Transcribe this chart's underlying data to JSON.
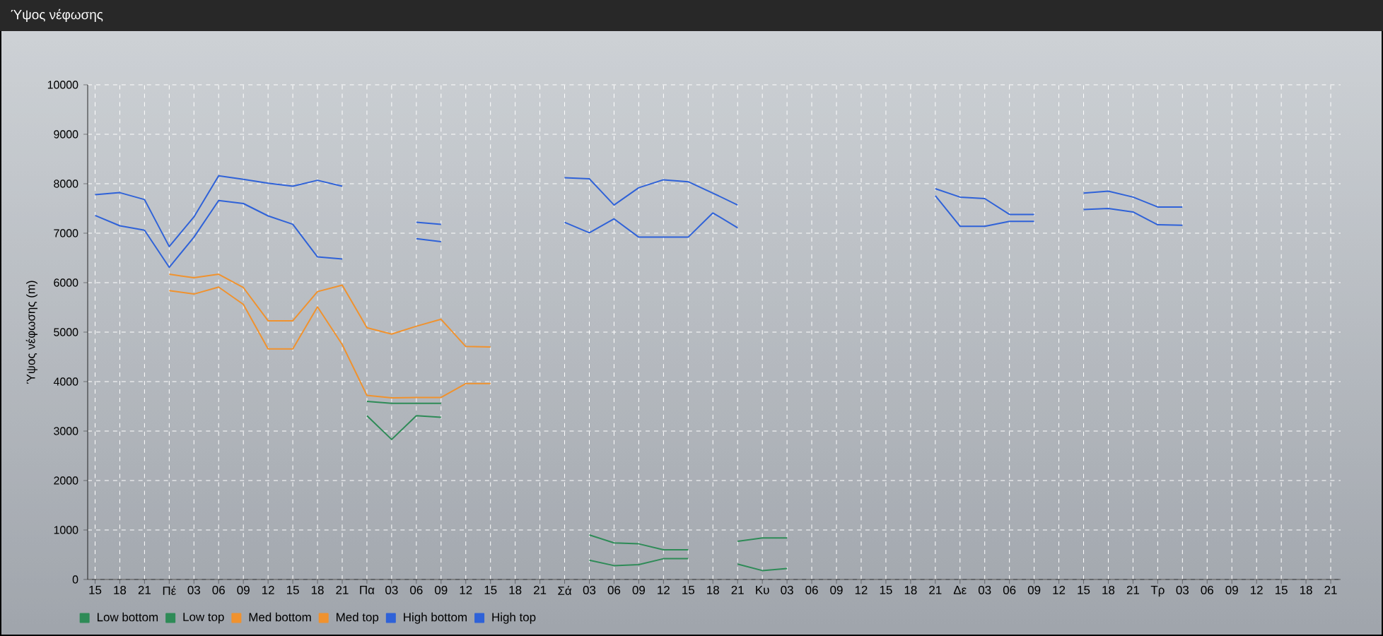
{
  "chart_data": {
    "type": "line",
    "title": "Ύψος νέφωσης",
    "ylabel": "Ύψος νέφωσης (m)",
    "categories": [
      "15",
      "18",
      "21",
      "Πέ",
      "03",
      "06",
      "09",
      "12",
      "15",
      "18",
      "21",
      "Πα",
      "03",
      "06",
      "09",
      "12",
      "15",
      "18",
      "21",
      "Σά",
      "03",
      "06",
      "09",
      "12",
      "15",
      "18",
      "21",
      "Κυ",
      "03",
      "06",
      "09",
      "12",
      "15",
      "18",
      "21",
      "Δε",
      "03",
      "06",
      "09",
      "12",
      "15",
      "18",
      "21",
      "Τρ",
      "03",
      "06",
      "09",
      "12",
      "15",
      "18",
      "21"
    ],
    "series": [
      {
        "name": "Low bottom",
        "color": "#2e8b57",
        "values": [
          null,
          null,
          null,
          null,
          null,
          null,
          null,
          null,
          null,
          null,
          null,
          3310,
          2830,
          3310,
          3280,
          null,
          null,
          null,
          null,
          null,
          390,
          280,
          300,
          420,
          420,
          null,
          310,
          180,
          220,
          null,
          null,
          null,
          null,
          null,
          null,
          null,
          null,
          null,
          null,
          null,
          null,
          null,
          null,
          null,
          null,
          null,
          null,
          null,
          null,
          null,
          null
        ]
      },
      {
        "name": "Low top",
        "color": "#2e8b57",
        "values": [
          null,
          null,
          null,
          null,
          null,
          null,
          null,
          null,
          null,
          null,
          null,
          3600,
          3560,
          3560,
          3560,
          null,
          null,
          null,
          null,
          null,
          900,
          740,
          720,
          600,
          600,
          null,
          770,
          840,
          840,
          null,
          null,
          null,
          null,
          null,
          null,
          null,
          null,
          null,
          null,
          null,
          null,
          null,
          null,
          null,
          null,
          null,
          null,
          null,
          null,
          null,
          null
        ]
      },
      {
        "name": "Med bottom",
        "color": "#f0922e",
        "values": [
          null,
          null,
          null,
          5840,
          5770,
          5910,
          5560,
          4660,
          4660,
          5510,
          4750,
          3720,
          3670,
          3680,
          3680,
          3960,
          3960,
          null,
          null,
          null,
          null,
          null,
          null,
          null,
          null,
          null,
          null,
          null,
          null,
          null,
          null,
          null,
          null,
          null,
          null,
          null,
          null,
          null,
          null,
          null,
          null,
          null,
          null,
          null,
          null,
          null,
          null,
          null,
          null,
          null,
          null
        ]
      },
      {
        "name": "Med top",
        "color": "#f0922e",
        "values": [
          null,
          null,
          null,
          6170,
          6100,
          6170,
          5900,
          5230,
          5230,
          5820,
          5950,
          5090,
          4960,
          5120,
          5260,
          4710,
          4700,
          null,
          null,
          null,
          null,
          null,
          null,
          null,
          null,
          null,
          null,
          null,
          null,
          null,
          null,
          null,
          null,
          null,
          null,
          null,
          null,
          null,
          null,
          null,
          null,
          null,
          null,
          null,
          null,
          null,
          null,
          null,
          null,
          null,
          null
        ]
      },
      {
        "name": "High bottom",
        "color": "#2f62d8",
        "values": [
          7360,
          7150,
          7060,
          6310,
          6920,
          7660,
          7600,
          7350,
          7180,
          6520,
          6480,
          null,
          null,
          6890,
          6830,
          null,
          null,
          null,
          null,
          7220,
          7010,
          7290,
          6920,
          6920,
          6920,
          7410,
          7110,
          null,
          null,
          null,
          null,
          null,
          null,
          null,
          7760,
          7140,
          7140,
          7240,
          7240,
          null,
          7480,
          7500,
          7430,
          7170,
          7160,
          null,
          null,
          null,
          null,
          null,
          null
        ]
      },
      {
        "name": "High top",
        "color": "#2f62d8",
        "values": [
          7780,
          7820,
          7680,
          6730,
          7330,
          8160,
          8090,
          8010,
          7950,
          8070,
          7950,
          null,
          null,
          7220,
          7180,
          null,
          null,
          null,
          null,
          8120,
          8100,
          7570,
          7920,
          8080,
          8040,
          7810,
          7570,
          null,
          null,
          null,
          null,
          null,
          null,
          null,
          7900,
          7730,
          7700,
          7380,
          7380,
          null,
          7810,
          7850,
          7730,
          7530,
          7530,
          null,
          null,
          null,
          null,
          null,
          null
        ]
      }
    ],
    "ylim": [
      0,
      10000
    ],
    "yticks": [
      0,
      1000,
      2000,
      3000,
      4000,
      5000,
      6000,
      7000,
      8000,
      9000,
      10000
    ],
    "grid": true,
    "legend": "bottom left",
    "marker": "none",
    "line_style": "solid"
  }
}
